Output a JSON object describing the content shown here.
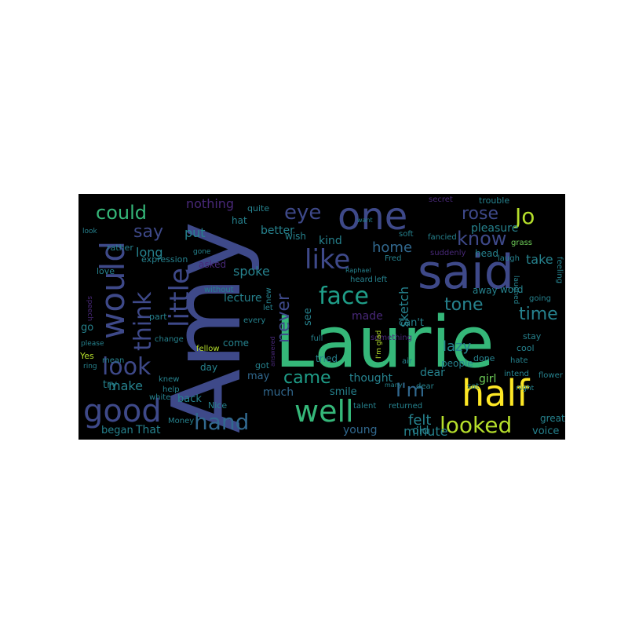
{
  "word_cloud": {
    "background_color": "#000000",
    "palette": {
      "yellow": "#fde725",
      "lime": "#b5de2b",
      "green": "#6ece58",
      "teal_green": "#35b779",
      "teal": "#1f9e89",
      "blue_teal": "#26828e",
      "slate": "#31688e",
      "indigo": "#3e4989",
      "violet": "#482878",
      "deep_purple": "#440154"
    },
    "words": [
      {
        "text": "Laurie",
        "color": "#35b779"
      },
      {
        "text": "Amy",
        "color": "#3e4989"
      },
      {
        "text": "said",
        "color": "#3e4989"
      },
      {
        "text": "one",
        "color": "#3e4989"
      },
      {
        "text": "half",
        "color": "#fde725"
      },
      {
        "text": "good",
        "color": "#3e4989"
      },
      {
        "text": "would",
        "color": "#3e4989"
      },
      {
        "text": "like",
        "color": "#3e4989"
      },
      {
        "text": "well",
        "color": "#35b779"
      },
      {
        "text": "face",
        "color": "#1f9e89"
      },
      {
        "text": "little",
        "color": "#3e4989"
      },
      {
        "text": "think",
        "color": "#3e4989"
      },
      {
        "text": "look",
        "color": "#3e4989"
      },
      {
        "text": "hand",
        "color": "#31688e"
      },
      {
        "text": "Jo",
        "color": "#b5de2b"
      },
      {
        "text": "could",
        "color": "#35b779"
      },
      {
        "text": "looked",
        "color": "#b5de2b"
      },
      {
        "text": "eye",
        "color": "#3e4989"
      },
      {
        "text": "know",
        "color": "#3e4989"
      },
      {
        "text": "rose",
        "color": "#3e4989"
      },
      {
        "text": "I'm",
        "color": "#31688e"
      },
      {
        "text": "came",
        "color": "#1f9e89"
      },
      {
        "text": "tone",
        "color": "#26828e"
      },
      {
        "text": "time",
        "color": "#26828e"
      },
      {
        "text": "never",
        "color": "#3e4989"
      },
      {
        "text": "say",
        "color": "#3e4989"
      },
      {
        "text": "home",
        "color": "#31688e"
      },
      {
        "text": "sketch",
        "color": "#26828e"
      },
      {
        "text": "lazy",
        "color": "#26828e"
      },
      {
        "text": "felt",
        "color": "#26828e"
      },
      {
        "text": "minute",
        "color": "#26828e"
      },
      {
        "text": "make",
        "color": "#26828e"
      },
      {
        "text": "nothing",
        "color": "#482878"
      },
      {
        "text": "put",
        "color": "#26828e"
      },
      {
        "text": "long",
        "color": "#26828e"
      },
      {
        "text": "spoke",
        "color": "#26828e"
      },
      {
        "text": "young",
        "color": "#31688e"
      },
      {
        "text": "dear",
        "color": "#26828e"
      },
      {
        "text": "thought",
        "color": "#26828e"
      },
      {
        "text": "take",
        "color": "#26828e"
      },
      {
        "text": "kind",
        "color": "#26828e"
      },
      {
        "text": "old",
        "color": "#26828e"
      },
      {
        "text": "That",
        "color": "#26828e"
      },
      {
        "text": "much",
        "color": "#31688e"
      },
      {
        "text": "better",
        "color": "#26828e"
      },
      {
        "text": "pleasure",
        "color": "#26828e"
      },
      {
        "text": "lecture",
        "color": "#26828e"
      },
      {
        "text": "made",
        "color": "#482878"
      },
      {
        "text": "can't",
        "color": "#26828e"
      },
      {
        "text": "smile",
        "color": "#26828e"
      },
      {
        "text": "girl",
        "color": "#6ece58"
      },
      {
        "text": "asked",
        "color": "#482878"
      },
      {
        "text": "see",
        "color": "#26828e"
      },
      {
        "text": "may",
        "color": "#31688e"
      },
      {
        "text": "go",
        "color": "#26828e"
      },
      {
        "text": "try",
        "color": "#26828e"
      },
      {
        "text": "back",
        "color": "#26828e"
      },
      {
        "text": "began",
        "color": "#26828e"
      },
      {
        "text": "voice",
        "color": "#26828e"
      },
      {
        "text": "tried",
        "color": "#26828e"
      },
      {
        "text": "people",
        "color": "#26828e"
      },
      {
        "text": "quite",
        "color": "#26828e"
      },
      {
        "text": "wish",
        "color": "#26828e"
      },
      {
        "text": "secret",
        "color": "#482878"
      },
      {
        "text": "trouble",
        "color": "#26828e"
      },
      {
        "text": "head",
        "color": "#26828e"
      },
      {
        "text": "away",
        "color": "#26828e"
      },
      {
        "text": "word",
        "color": "#26828e"
      },
      {
        "text": "expression",
        "color": "#26828e"
      },
      {
        "text": "rather",
        "color": "#26828e"
      },
      {
        "text": "love",
        "color": "#26828e"
      },
      {
        "text": "come",
        "color": "#26828e"
      },
      {
        "text": "day",
        "color": "#26828e"
      },
      {
        "text": "got",
        "color": "#26828e"
      },
      {
        "text": "Nice",
        "color": "#26828e"
      },
      {
        "text": "Yes",
        "color": "#b5de2b"
      },
      {
        "text": "part",
        "color": "#26828e"
      },
      {
        "text": "going",
        "color": "#26828e"
      },
      {
        "text": "stay",
        "color": "#26828e"
      },
      {
        "text": "cool",
        "color": "#26828e"
      },
      {
        "text": "done",
        "color": "#26828e"
      },
      {
        "text": "grass",
        "color": "#6ece58"
      },
      {
        "text": "flower",
        "color": "#26828e"
      },
      {
        "text": "great",
        "color": "#26828e"
      },
      {
        "text": "laugh",
        "color": "#26828e"
      },
      {
        "text": "feeling",
        "color": "#26828e"
      },
      {
        "text": "fancied",
        "color": "#26828e"
      },
      {
        "text": "suddenly",
        "color": "#482878"
      },
      {
        "text": "Fred",
        "color": "#26828e"
      },
      {
        "text": "heard",
        "color": "#26828e"
      },
      {
        "text": "left",
        "color": "#26828e"
      },
      {
        "text": "let",
        "color": "#26828e"
      },
      {
        "text": "every",
        "color": "#26828e"
      },
      {
        "text": "new",
        "color": "#26828e"
      },
      {
        "text": "answered",
        "color": "#482878"
      },
      {
        "text": "returned",
        "color": "#26828e"
      },
      {
        "text": "talent",
        "color": "#26828e"
      },
      {
        "text": "air",
        "color": "#26828e"
      },
      {
        "text": "sat",
        "color": "#26828e"
      },
      {
        "text": "intend",
        "color": "#26828e"
      },
      {
        "text": "change",
        "color": "#26828e"
      },
      {
        "text": "fellow",
        "color": "#b5de2b"
      },
      {
        "text": "help",
        "color": "#26828e"
      },
      {
        "text": "knew",
        "color": "#26828e"
      },
      {
        "text": "mean",
        "color": "#26828e"
      },
      {
        "text": "something",
        "color": "#482878"
      },
      {
        "text": "full",
        "color": "#26828e"
      },
      {
        "text": "ring",
        "color": "#26828e"
      },
      {
        "text": "gone",
        "color": "#26828e"
      },
      {
        "text": "hat",
        "color": "#26828e"
      },
      {
        "text": "without",
        "color": "#26828e"
      },
      {
        "text": "hate",
        "color": "#26828e"
      },
      {
        "text": "white",
        "color": "#26828e"
      },
      {
        "text": "please",
        "color": "#26828e"
      },
      {
        "text": "speech",
        "color": "#482878"
      },
      {
        "text": "soft",
        "color": "#26828e"
      },
      {
        "text": "look",
        "color": "#26828e"
      },
      {
        "text": "Money",
        "color": "#26828e"
      },
      {
        "text": "I'm glad",
        "color": "#b5de2b"
      },
      {
        "text": "many",
        "color": "#26828e"
      },
      {
        "text": "want",
        "color": "#26828e"
      },
      {
        "text": "laughed",
        "color": "#26828e"
      },
      {
        "text": "night",
        "color": "#26828e"
      },
      {
        "text": "Raphael",
        "color": "#26828e"
      },
      {
        "text": "dear",
        "color": "#26828e"
      }
    ]
  }
}
